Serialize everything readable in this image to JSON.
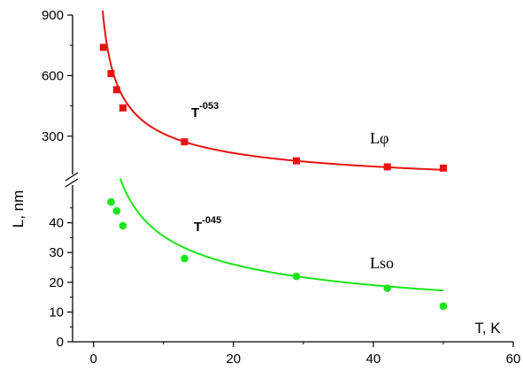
{
  "chart_data": {
    "type": "scatter",
    "xlabel": "T, K",
    "ylabel": "L, nm",
    "x_ticks": [
      0,
      20,
      40,
      60
    ],
    "xlim": [
      -3,
      60
    ],
    "y_upper": {
      "ticks": [
        300,
        600,
        900
      ],
      "range": [
        150,
        900
      ]
    },
    "y_lower": {
      "ticks": [
        0,
        10,
        20,
        30,
        40
      ],
      "range": [
        0,
        50
      ]
    },
    "axis_break": true,
    "series": [
      {
        "name": "Lφ",
        "panel": "upper",
        "color": "#e8120f",
        "marker": "square",
        "fit_exponent": -0.53,
        "fit_label": "T",
        "fit_label_exponent": "-053",
        "x": [
          1.4,
          2.5,
          3.3,
          4.2,
          13,
          29,
          42,
          50
        ],
        "y": [
          740,
          610,
          530,
          440,
          272,
          178,
          148,
          142
        ]
      },
      {
        "name": "Lso",
        "panel": "lower",
        "color": "#19e619",
        "marker": "circle",
        "fit_exponent": -0.45,
        "fit_label": "T",
        "fit_label_exponent": "-045",
        "x": [
          2.5,
          3.3,
          4.2,
          13,
          29,
          42,
          50
        ],
        "y": [
          47,
          44,
          39,
          28,
          22,
          18,
          12
        ]
      }
    ]
  }
}
